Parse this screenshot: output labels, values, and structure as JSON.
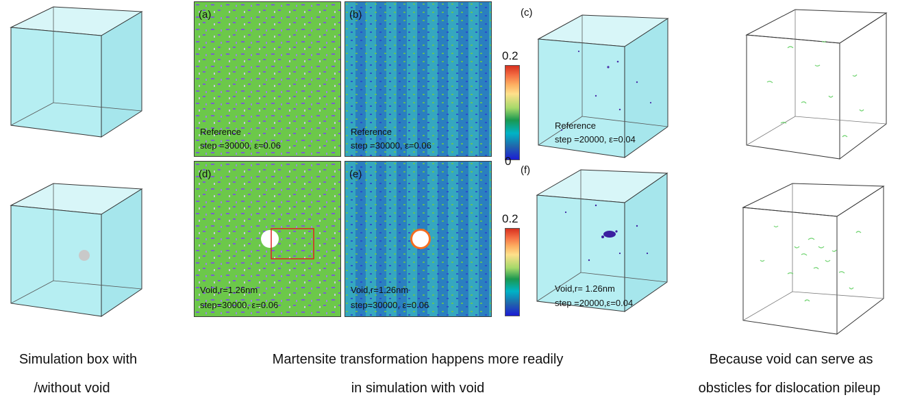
{
  "panels": [
    {
      "letter": "(a)",
      "line1": "Reference",
      "line2": "step =30000, ε=0.06"
    },
    {
      "letter": "(b)",
      "line1": "Reference",
      "line2": "step =30000, ε=0.06"
    },
    {
      "letter": "(c)",
      "line1": "Reference",
      "line2": "step =20000, ε=0.04"
    },
    {
      "letter": "(d)",
      "line1": "Void,r=1.26nm",
      "line2": "step=30000, ε=0.06"
    },
    {
      "letter": "(e)",
      "line1": "Void,r=1.26nm",
      "line2": "step=30000, ε=0.06"
    },
    {
      "letter": "(f)",
      "line1": "Void,r= 1.26nm",
      "line2": "step =20000,ε=0.04"
    }
  ],
  "colorbars": [
    {
      "max": "0.2",
      "min": "0"
    },
    {
      "max": "0.2"
    }
  ],
  "captions": {
    "left_line1": "Simulation box with",
    "left_line2": "/without void",
    "middle_line1": "Martensite transformation happens more readily",
    "middle_line2": "in simulation with void",
    "right_line1": "Because void can serve as",
    "right_line2": "obsticles for dislocation pileup"
  },
  "colors": {
    "box_fill": "#b6eef2",
    "ferrite_green": "#6cc84a",
    "martensite_purple": "#7a5fd0",
    "strain_blue": "#2f8fbf",
    "dislocation_green": "#6fd36f",
    "highlight_red": "#e02020"
  }
}
